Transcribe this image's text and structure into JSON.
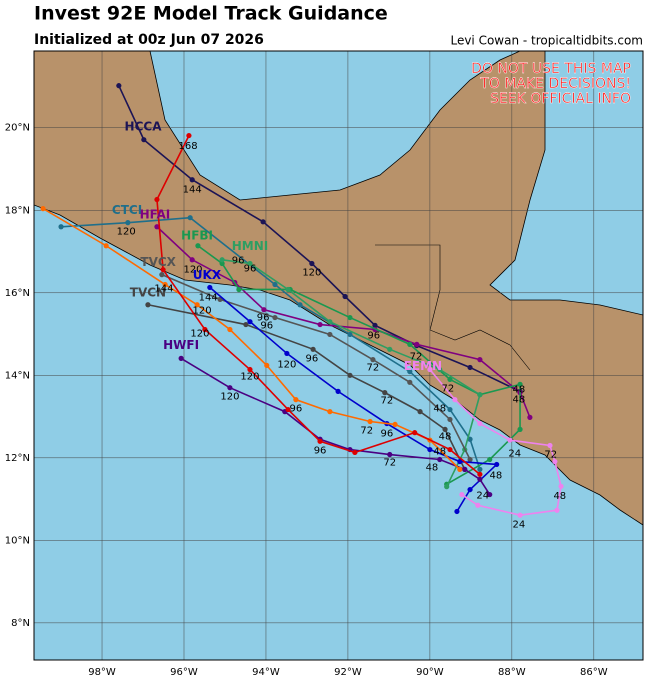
{
  "header": {
    "title": "Invest 92E Model Track Guidance",
    "subtitle": "Initialized at 00z Jun 07 2026",
    "credit": "Levi Cowan - tropicaltidbits.com"
  },
  "map": {
    "warning": [
      "DO NOT USE THIS MAP",
      "TO MAKE DECISIONS!",
      "SEEK OFFICIAL INFO"
    ],
    "xlim": [
      -99.66,
      -84.8
    ],
    "ylim": [
      7.1,
      21.86
    ],
    "xticks": [
      {
        "value": -98,
        "label": "98°W"
      },
      {
        "value": -96,
        "label": "96°W"
      },
      {
        "value": -94,
        "label": "94°W"
      },
      {
        "value": -92,
        "label": "92°W"
      },
      {
        "value": -90,
        "label": "90°W"
      },
      {
        "value": -88,
        "label": "88°W"
      },
      {
        "value": -86,
        "label": "86°W"
      }
    ],
    "yticks": [
      {
        "value": 8,
        "label": "8°N"
      },
      {
        "value": 10,
        "label": "10°N"
      },
      {
        "value": 12,
        "label": "12°N"
      },
      {
        "value": 14,
        "label": "14°N"
      },
      {
        "value": 16,
        "label": "16°N"
      },
      {
        "value": 18,
        "label": "18°N"
      },
      {
        "value": 20,
        "label": "20°N"
      }
    ],
    "grid": true,
    "tracks": [
      {
        "name": "HCCA",
        "color": "#1c1456",
        "label_at": [
          -97.0,
          20.02
        ],
        "points": [
          [
            -97.59,
            21.02
          ],
          [
            -96.98,
            19.71
          ],
          [
            -95.8,
            18.74
          ],
          [
            -94.07,
            17.72
          ],
          [
            -92.88,
            16.71
          ],
          [
            -92.07,
            15.91
          ],
          [
            -91.34,
            15.21
          ],
          [
            -90.32,
            14.72
          ],
          [
            -89.02,
            14.19
          ],
          [
            -87.8,
            13.61
          ]
        ],
        "hours": [
          {
            "text": "144",
            "at": [
              -95.8,
              18.5
            ]
          },
          {
            "text": "120",
            "at": [
              -92.88,
              16.49
            ]
          },
          {
            "text": "96",
            "at": [
              -91.37,
              14.96
            ]
          },
          {
            "text": "72",
            "at": [
              -90.34,
              14.45
            ]
          },
          {
            "text": "48",
            "at": [
              -87.83,
              13.41
            ]
          }
        ]
      },
      {
        "name": "CTCI",
        "color": "#1f6f8b",
        "label_at": [
          -97.39,
          17.99
        ],
        "points": [
          [
            -99.0,
            17.6
          ],
          [
            -97.37,
            17.7
          ],
          [
            -95.85,
            17.82
          ],
          [
            -93.78,
            16.2
          ],
          [
            -93.17,
            15.71
          ],
          [
            -91.95,
            14.99
          ],
          [
            -90.49,
            14.09
          ],
          [
            -89.51,
            13.17
          ],
          [
            -89.02,
            12.45
          ],
          [
            -88.78,
            11.72
          ]
        ],
        "hours": [
          {
            "text": "120",
            "at": [
              -97.41,
              17.48
            ]
          },
          {
            "text": "72",
            "at": [
              -91.05,
              13.39
            ]
          },
          {
            "text": "48",
            "at": [
              -89.63,
              12.52
            ]
          }
        ]
      },
      {
        "name": "HFAI",
        "color": "#800080",
        "label_at": [
          -96.71,
          17.89
        ],
        "points": [
          [
            -96.66,
            17.6
          ],
          [
            -95.8,
            16.8
          ],
          [
            -94.76,
            16.25
          ],
          [
            -94.05,
            15.59
          ],
          [
            -92.68,
            15.23
          ],
          [
            -91.34,
            15.11
          ],
          [
            -90.32,
            14.75
          ],
          [
            -88.78,
            14.38
          ],
          [
            -87.8,
            13.58
          ],
          [
            -87.56,
            12.98
          ]
        ],
        "hours": [
          {
            "text": "120",
            "at": [
              -95.78,
              16.56
            ]
          },
          {
            "text": "48",
            "at": [
              -87.83,
              13.66
            ]
          }
        ]
      },
      {
        "name": "HFBI",
        "color": "#1a9850",
        "label_at": [
          -95.68,
          17.38
        ],
        "points": [
          [
            -95.66,
            17.14
          ],
          [
            -95.07,
            16.71
          ],
          [
            -94.66,
            16.08
          ],
          [
            -93.41,
            16.08
          ],
          [
            -91.95,
            15.4
          ],
          [
            -90.49,
            14.75
          ],
          [
            -89.51,
            13.9
          ],
          [
            -88.78,
            13.53
          ],
          [
            -87.8,
            13.78
          ],
          [
            -87.8,
            12.69
          ],
          [
            -88.54,
            11.96
          ],
          [
            -89.59,
            11.36
          ]
        ],
        "hours": [
          {
            "text": "96",
            "at": [
              -94.68,
              16.78
            ]
          }
        ]
      },
      {
        "name": "HMNI",
        "color": "#2e9e62",
        "label_at": [
          -94.39,
          17.12
        ],
        "points": [
          [
            -95.07,
            16.8
          ],
          [
            -94.39,
            16.71
          ],
          [
            -93.46,
            16.08
          ],
          [
            -92.44,
            15.3
          ],
          [
            -90.98,
            14.63
          ],
          [
            -89.76,
            14.14
          ],
          [
            -88.78,
            13.53
          ],
          [
            -89.15,
            12.2
          ],
          [
            -89.59,
            11.3
          ]
        ],
        "hours": [
          {
            "text": "96",
            "at": [
              -94.39,
              16.59
            ]
          }
        ]
      },
      {
        "name": "TVCX",
        "color": "#555555",
        "label_at": [
          -96.63,
          16.73
        ],
        "points": [
          [
            -96.54,
            16.44
          ],
          [
            -95.12,
            15.84
          ],
          [
            -93.78,
            15.4
          ],
          [
            -92.44,
            14.99
          ],
          [
            -91.39,
            14.38
          ],
          [
            -90.49,
            13.83
          ],
          [
            -89.51,
            12.93
          ],
          [
            -89.02,
            11.96
          ]
        ],
        "hours": [
          {
            "text": "96",
            "at": [
              -94.07,
              15.4
            ]
          },
          {
            "text": "72",
            "at": [
              -91.39,
              14.19
            ]
          },
          {
            "text": "48",
            "at": [
              -89.76,
              13.2
            ]
          }
        ]
      },
      {
        "name": "TVCN",
        "color": "#444444",
        "label_at": [
          -96.88,
          16.0
        ],
        "points": [
          [
            -96.88,
            15.71
          ],
          [
            -94.49,
            15.23
          ],
          [
            -92.85,
            14.63
          ],
          [
            -91.95,
            14.0
          ],
          [
            -91.1,
            13.58
          ],
          [
            -90.24,
            13.12
          ],
          [
            -89.63,
            12.69
          ],
          [
            -89.15,
            11.72
          ]
        ],
        "hours": [
          {
            "text": "96",
            "at": [
              -93.98,
              15.21
            ]
          },
          {
            "text": "96",
            "at": [
              -92.88,
              14.41
            ]
          },
          {
            "text": "48",
            "at": [
              -89.76,
              12.15
            ]
          }
        ]
      },
      {
        "name": "UKX",
        "color": "#0000cc",
        "label_at": [
          -95.44,
          16.42
        ],
        "points": [
          [
            -95.37,
            16.13
          ],
          [
            -94.39,
            15.3
          ],
          [
            -93.49,
            14.53
          ],
          [
            -92.24,
            13.61
          ],
          [
            -91.05,
            12.83
          ],
          [
            -90.0,
            12.2
          ],
          [
            -89.27,
            11.91
          ],
          [
            -88.37,
            11.84
          ],
          [
            -89.02,
            11.23
          ],
          [
            -89.34,
            10.7
          ]
        ],
        "hours": [
          {
            "text": "144",
            "at": [
              -95.41,
              15.88
            ]
          },
          {
            "text": "120",
            "at": [
              -93.49,
              14.26
            ]
          },
          {
            "text": "96",
            "at": [
              -91.05,
              12.59
            ]
          },
          {
            "text": "48",
            "at": [
              -88.39,
              11.57
            ]
          }
        ]
      },
      {
        "name": "HWFI",
        "color": "#4b0082",
        "label_at": [
          -96.07,
          14.72
        ],
        "points": [
          [
            -96.07,
            14.41
          ],
          [
            -94.88,
            13.7
          ],
          [
            -93.54,
            13.12
          ],
          [
            -92.68,
            12.45
          ],
          [
            -91.95,
            12.2
          ],
          [
            -90.98,
            12.08
          ],
          [
            -89.76,
            11.96
          ],
          [
            -89.15,
            11.72
          ],
          [
            -88.78,
            11.48
          ],
          [
            -88.54,
            11.11
          ]
        ],
        "hours": [
          {
            "text": "120",
            "at": [
              -94.88,
              13.49
            ]
          },
          {
            "text": "96",
            "at": [
              -92.68,
              12.18
            ]
          },
          {
            "text": "72",
            "at": [
              -90.98,
              11.89
            ]
          },
          {
            "text": "24",
            "at": [
              -88.71,
              11.09
            ]
          }
        ]
      },
      {
        "color": "#ff6a00",
        "points": [
          [
            -99.44,
            18.04
          ],
          [
            -97.9,
            17.14
          ],
          [
            -96.46,
            16.2
          ],
          [
            -95.68,
            15.71
          ],
          [
            -94.88,
            15.11
          ],
          [
            -93.98,
            14.24
          ],
          [
            -93.27,
            13.41
          ],
          [
            -92.44,
            13.12
          ],
          [
            -91.46,
            12.88
          ],
          [
            -90.85,
            12.81
          ],
          [
            -90.0,
            12.43
          ],
          [
            -89.27,
            11.72
          ]
        ],
        "hours": [
          {
            "text": "120",
            "at": [
              -95.56,
              15.57
            ]
          },
          {
            "text": "120",
            "at": [
              -94.39,
              13.97
            ]
          },
          {
            "text": "96",
            "at": [
              -93.27,
              13.2
            ]
          },
          {
            "text": "72",
            "at": [
              -91.54,
              12.66
            ]
          }
        ]
      },
      {
        "color": "#dd0000",
        "points": [
          [
            -95.88,
            19.81
          ],
          [
            -96.66,
            18.26
          ],
          [
            -96.51,
            16.56
          ],
          [
            -95.49,
            15.11
          ],
          [
            -94.39,
            14.14
          ],
          [
            -93.46,
            13.17
          ],
          [
            -92.68,
            12.4
          ],
          [
            -91.83,
            12.13
          ],
          [
            -90.37,
            12.61
          ],
          [
            -89.51,
            12.2
          ],
          [
            -88.78,
            11.6
          ]
        ],
        "hours": [
          {
            "text": "168",
            "at": [
              -95.9,
              19.56
            ]
          },
          {
            "text": "144",
            "at": [
              -96.49,
              16.1
            ]
          },
          {
            "text": "120",
            "at": [
              -95.61,
              15.01
            ]
          },
          {
            "text": "48",
            "at": [
              -89.95,
              11.77
            ]
          }
        ]
      },
      {
        "name": "EEMN",
        "color": "#ee82ee",
        "label_at": [
          -90.17,
          14.21
        ],
        "points": [
          [
            -90.0,
            14.14
          ],
          [
            -89.39,
            13.41
          ],
          [
            -88.78,
            12.83
          ],
          [
            -88.05,
            12.43
          ],
          [
            -87.07,
            12.3
          ],
          [
            -86.95,
            11.91
          ],
          [
            -86.8,
            11.31
          ],
          [
            -86.9,
            10.73
          ],
          [
            -87.8,
            10.61
          ],
          [
            -88.83,
            10.85
          ],
          [
            -89.22,
            11.11
          ]
        ],
        "hours": [
          {
            "text": "72",
            "at": [
              -89.56,
              13.68
            ]
          },
          {
            "text": "72",
            "at": [
              -87.05,
              12.08
            ]
          },
          {
            "text": "48",
            "at": [
              -86.83,
              11.07
            ]
          },
          {
            "text": "24",
            "at": [
              -87.83,
              10.39
            ]
          },
          {
            "text": "24",
            "at": [
              -87.93,
              12.11
            ]
          }
        ]
      }
    ]
  }
}
